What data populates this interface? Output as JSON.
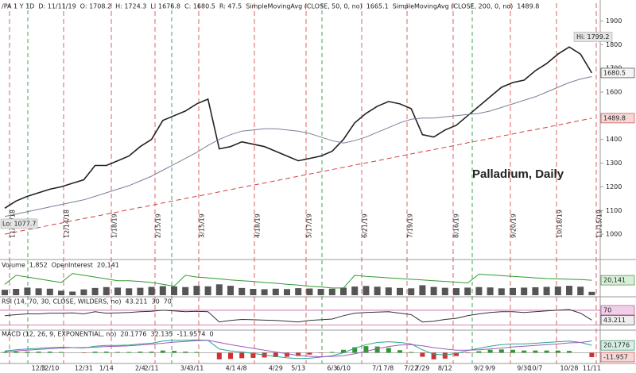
{
  "chart_data": [
    {
      "type": "line",
      "header_texts": [
        "/PA 1 Y 1D",
        "D: 11/11/19",
        "O: 1708.2",
        "H: 1724.3",
        "L: 1676.8",
        "C: 1680.5",
        "R: 47.5"
      ],
      "categories": [
        null,
        null,
        null,
        "12/3",
        "12/10",
        null,
        null,
        "12/31",
        null,
        "1/14",
        null,
        null,
        "2/4",
        "2/11",
        null,
        null,
        "3/4",
        "3/11",
        null,
        null,
        "4/1",
        "4/8",
        null,
        null,
        "4/29",
        null,
        "5/13",
        null,
        null,
        "6/3",
        "6/10",
        null,
        null,
        "7/1",
        "7/8",
        null,
        "7/22",
        "7/29",
        null,
        "8/12",
        null,
        null,
        "9/2",
        "9/9",
        null,
        null,
        "9/30",
        "10/7",
        null,
        null,
        "10/28",
        null,
        "11/11"
      ],
      "series": [
        {
          "color": "#222222",
          "values": [
            1110,
            1140,
            1160,
            1175,
            1190,
            1200,
            1215,
            1230,
            1290,
            1290,
            1310,
            1330,
            1370,
            1400,
            1480,
            1500,
            1520,
            1550,
            1570,
            1360,
            1370,
            1390,
            1380,
            1370,
            1350,
            1330,
            1310,
            1320,
            1330,
            1350,
            1400,
            1470,
            1510,
            1540,
            1560,
            1550,
            1530,
            1420,
            1410,
            1440,
            1460,
            1500,
            1540,
            1580,
            1620,
            1640,
            1650,
            1690,
            1720,
            1760,
            1790,
            1760,
            1680.5
          ]
        },
        {
          "name": "SimpleMovingAvg (CLOSE, 50, 0, no)",
          "color": "#7a7f9a",
          "values": [
            1075,
            1085,
            1095,
            1105,
            1115,
            1125,
            1135,
            1145,
            1160,
            1175,
            1190,
            1205,
            1225,
            1245,
            1270,
            1295,
            1320,
            1345,
            1375,
            1400,
            1420,
            1435,
            1440,
            1445,
            1445,
            1440,
            1435,
            1425,
            1410,
            1395,
            1385,
            1395,
            1410,
            1430,
            1450,
            1470,
            1485,
            1490,
            1490,
            1495,
            1500,
            1505,
            1510,
            1520,
            1535,
            1550,
            1565,
            1580,
            1600,
            1620,
            1640,
            1655,
            1665.1
          ]
        },
        {
          "name": "SimpleMovingAvg (CLOSE, 200, 0, no)",
          "color": "#d04040",
          "dashed": true,
          "values": [
            1000,
            1010,
            1019,
            1028,
            1038,
            1047,
            1057,
            1066,
            1075,
            1085,
            1094,
            1104,
            1113,
            1122,
            1132,
            1141,
            1151,
            1160,
            1169,
            1179,
            1188,
            1198,
            1207,
            1216,
            1226,
            1235,
            1245,
            1254,
            1263,
            1273,
            1282,
            1292,
            1301,
            1310,
            1320,
            1329,
            1339,
            1348,
            1357,
            1367,
            1376,
            1386,
            1395,
            1404,
            1414,
            1423,
            1433,
            1442,
            1451,
            1461,
            1470,
            1480,
            1489.8
          ]
        }
      ],
      "annotations": [
        {
          "text": "Hi: 1799.2",
          "value": 1799.2
        },
        {
          "text": "Lo: 1077.7",
          "value": 1077.7
        }
      ],
      "watermark": "Palladium, Daily",
      "date_lines": [
        "11/16/18",
        "12/14/18",
        "1/18/19",
        "2/15/19",
        "3/15/19",
        "4/18/19",
        "5/17/19",
        "6/21/19",
        "7/19/19",
        "8/16/19",
        "9/20/19",
        "10/18/19",
        "11/15/19"
      ],
      "ylim": [
        900,
        1975
      ],
      "yticks": [
        1000,
        1100,
        1200,
        1300,
        1400,
        1500,
        1600,
        1700,
        1800,
        1900
      ]
    },
    {
      "type": "bar",
      "current_labels": [
        "1,852",
        "20,141"
      ],
      "series": [
        {
          "name": "Volume",
          "color": "#555555",
          "values": [
            3000,
            3500,
            4200,
            3800,
            3600,
            2500,
            2000,
            3200,
            4000,
            4500,
            4200,
            3800,
            4100,
            4600,
            5000,
            4800,
            4500,
            5200,
            4900,
            6000,
            5200,
            4000,
            3500,
            3300,
            3600,
            3400,
            3900,
            3700,
            3500,
            3600,
            4200,
            4800,
            5100,
            4700,
            4300,
            4000,
            3800,
            5500,
            4600,
            4100,
            3900,
            4200,
            4500,
            4300,
            3800,
            4000,
            4200,
            4400,
            4600,
            4800,
            5200,
            4700,
            1852
          ]
        },
        {
          "name": "OpenInterest",
          "color": "#2e9a2e",
          "axis": "y2",
          "values": [
            19000,
            21500,
            21000,
            20500,
            20000,
            19500,
            22000,
            21500,
            21000,
            20500,
            20000,
            20000,
            19800,
            19500,
            19000,
            18500,
            21500,
            21000,
            20800,
            20500,
            20200,
            20000,
            19800,
            19500,
            19300,
            19000,
            18800,
            18500,
            18300,
            18000,
            18000,
            21500,
            21200,
            21000,
            20800,
            20600,
            20400,
            20200,
            20000,
            19800,
            19600,
            19400,
            21800,
            21600,
            21400,
            21200,
            21000,
            20800,
            20600,
            20500,
            20400,
            20300,
            20141
          ]
        }
      ],
      "ylim": [
        0,
        14000
      ],
      "y2lim": [
        16000,
        23000
      ]
    },
    {
      "type": "line",
      "title": "RSI (14, 70, 30, CLOSE, WILDERS, no)",
      "levels": [
        30,
        70
      ],
      "series": [
        {
          "color": "#333333",
          "values": [
            55,
            58,
            60,
            60,
            62,
            62,
            63,
            60,
            66,
            62,
            63,
            64,
            66,
            67,
            70,
            68,
            66,
            67,
            66,
            38,
            42,
            45,
            44,
            43,
            42,
            40,
            38,
            42,
            44,
            46,
            55,
            62,
            64,
            65,
            66,
            62,
            58,
            38,
            40,
            45,
            48,
            55,
            60,
            64,
            66,
            66,
            64,
            66,
            68,
            70,
            72,
            62,
            43.211
          ]
        }
      ],
      "ylim": [
        20,
        85
      ]
    },
    {
      "type": "macd",
      "title": "MACD (12, 26, 9, EXPONENTIAL, no)",
      "zero": 0,
      "series": [
        {
          "color": "#2aa58a",
          "values": [
            5,
            8,
            10,
            12,
            14,
            15,
            14,
            13,
            18,
            20,
            20,
            21,
            24,
            26,
            32,
            34,
            34,
            35,
            34,
            10,
            5,
            2,
            -2,
            -6,
            -10,
            -14,
            -16,
            -15,
            -12,
            -8,
            0,
            12,
            22,
            28,
            30,
            28,
            24,
            8,
            -4,
            -6,
            -2,
            6,
            12,
            18,
            22,
            24,
            24,
            26,
            28,
            30,
            32,
            28,
            20.1776
          ]
        },
        {
          "color": "#9a5bbf",
          "values": [
            3,
            5,
            7,
            9,
            11,
            13,
            14,
            14,
            15,
            17,
            18,
            19,
            21,
            23,
            26,
            29,
            31,
            33,
            34,
            28,
            22,
            17,
            12,
            7,
            2,
            -3,
            -7,
            -10,
            -11,
            -10,
            -8,
            -3,
            4,
            11,
            17,
            21,
            22,
            19,
            14,
            10,
            7,
            7,
            8,
            10,
            13,
            16,
            18,
            20,
            22,
            24,
            27,
            28,
            32.135
          ]
        },
        {
          "color": "#2e9a2e",
          "negative_color": "#d03030",
          "values": [
            2,
            3,
            3,
            3,
            3,
            2,
            0,
            -1,
            3,
            3,
            2,
            2,
            3,
            3,
            6,
            5,
            3,
            2,
            0,
            -18,
            -17,
            -15,
            -14,
            -13,
            -12,
            -11,
            -9,
            -5,
            -1,
            2,
            8,
            15,
            18,
            17,
            13,
            7,
            2,
            -11,
            -18,
            -16,
            -9,
            -1,
            4,
            8,
            9,
            8,
            6,
            6,
            6,
            6,
            5,
            0,
            -11.9574
          ],
          "last_label": "-11.957"
        }
      ],
      "ylim": [
        -25,
        40
      ]
    }
  ]
}
